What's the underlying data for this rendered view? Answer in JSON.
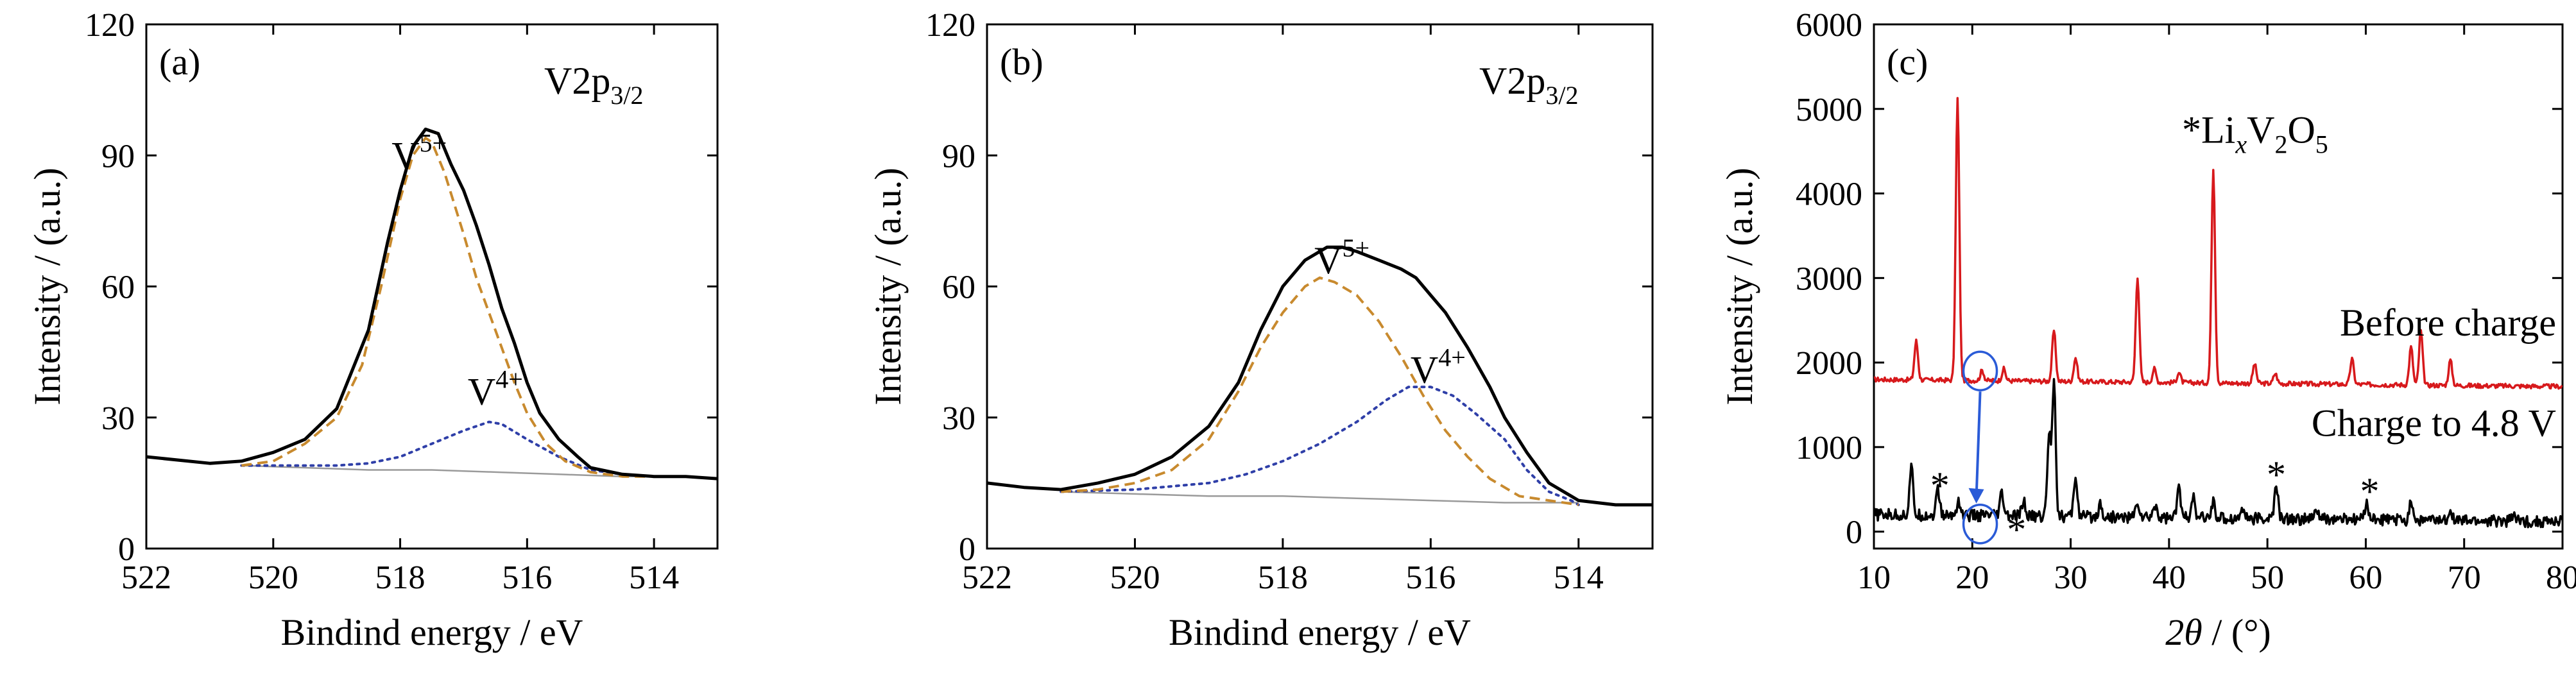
{
  "chart_data": [
    {
      "type": "line",
      "panel_label": "(a)",
      "annotation": {
        "main": "V2p",
        "sub": "3/2"
      },
      "xlabel": "Bindind energy / eV",
      "ylabel": "Intensity / (a.u.)",
      "xlim": [
        522,
        513
      ],
      "ylim": [
        0,
        120
      ],
      "x_ticks": [
        522,
        520,
        518,
        516,
        514
      ],
      "y_ticks": [
        0,
        30,
        60,
        90,
        120
      ],
      "peak_labels": [
        {
          "base": "V",
          "sup": "5+",
          "x": 517.7,
          "y": 87
        },
        {
          "base": "V",
          "sup": "4+",
          "x": 516.5,
          "y": 33
        }
      ],
      "series": [
        {
          "style": "solid",
          "color": "#000000",
          "points": [
            [
              522,
              21
            ],
            [
              521,
              19.5
            ],
            [
              520.5,
              20
            ],
            [
              520,
              22
            ],
            [
              519.5,
              25
            ],
            [
              519,
              32
            ],
            [
              518.5,
              50
            ],
            [
              518.2,
              70
            ],
            [
              518,
              82
            ],
            [
              517.8,
              92
            ],
            [
              517.6,
              96
            ],
            [
              517.4,
              95
            ],
            [
              517.2,
              88
            ],
            [
              517,
              82
            ],
            [
              516.8,
              74
            ],
            [
              516.6,
              65
            ],
            [
              516.4,
              55
            ],
            [
              516.2,
              47
            ],
            [
              516,
              38
            ],
            [
              515.8,
              31
            ],
            [
              515.5,
              25
            ],
            [
              515.2,
              21
            ],
            [
              515,
              18.5
            ],
            [
              514.5,
              17
            ],
            [
              514,
              16.5
            ],
            [
              513.5,
              16.5
            ],
            [
              513,
              16
            ]
          ]
        },
        {
          "style": "dashed",
          "color": "#c88a2e",
          "points": [
            [
              520.5,
              19
            ],
            [
              520,
              20
            ],
            [
              519.5,
              24
            ],
            [
              519,
              30
            ],
            [
              518.6,
              42
            ],
            [
              518.3,
              60
            ],
            [
              518,
              80
            ],
            [
              517.8,
              90
            ],
            [
              517.6,
              94
            ],
            [
              517.5,
              93
            ],
            [
              517.3,
              86
            ],
            [
              517,
              72
            ],
            [
              516.8,
              62
            ],
            [
              516.5,
              50
            ],
            [
              516.2,
              38
            ],
            [
              516,
              31
            ],
            [
              515.7,
              24
            ],
            [
              515.4,
              20
            ],
            [
              515,
              17.5
            ],
            [
              514.5,
              16.5
            ],
            [
              514,
              16.5
            ]
          ]
        },
        {
          "style": "dotted",
          "color": "#2f3fa8",
          "points": [
            [
              520.5,
              19
            ],
            [
              520,
              19
            ],
            [
              519,
              19
            ],
            [
              518.5,
              19.5
            ],
            [
              518,
              21
            ],
            [
              517.5,
              24
            ],
            [
              517,
              27
            ],
            [
              516.6,
              29
            ],
            [
              516.4,
              28.5
            ],
            [
              516,
              25
            ],
            [
              515.5,
              21
            ],
            [
              515,
              18
            ],
            [
              514.5,
              17
            ]
          ]
        },
        {
          "style": "thin",
          "color": "#9a9a9a",
          "points": [
            [
              520.5,
              19
            ],
            [
              519.5,
              18.5
            ],
            [
              518.5,
              18
            ],
            [
              517.5,
              18
            ],
            [
              516.5,
              17.5
            ],
            [
              515.5,
              17
            ],
            [
              514.5,
              16.5
            ],
            [
              514,
              16.5
            ]
          ]
        }
      ]
    },
    {
      "type": "line",
      "panel_label": "(b)",
      "annotation": {
        "main": "V2p",
        "sub": "3/2"
      },
      "xlabel": "Bindind energy / eV",
      "ylabel": "Intensity / (a.u.)",
      "xlim": [
        522,
        513
      ],
      "ylim": [
        0,
        120
      ],
      "x_ticks": [
        522,
        520,
        518,
        516,
        514
      ],
      "y_ticks": [
        0,
        30,
        60,
        90,
        120
      ],
      "peak_labels": [
        {
          "base": "V",
          "sup": "5+",
          "x": 517.2,
          "y": 63
        },
        {
          "base": "V",
          "sup": "4+",
          "x": 515.9,
          "y": 38
        }
      ],
      "series": [
        {
          "style": "solid",
          "color": "#000000",
          "points": [
            [
              522,
              15
            ],
            [
              521.5,
              14
            ],
            [
              521,
              13.5
            ],
            [
              520.5,
              15
            ],
            [
              520,
              17
            ],
            [
              519.5,
              21
            ],
            [
              519,
              28
            ],
            [
              518.6,
              38
            ],
            [
              518.3,
              50
            ],
            [
              518,
              60
            ],
            [
              517.7,
              66
            ],
            [
              517.4,
              69
            ],
            [
              517.2,
              69
            ],
            [
              517,
              68
            ],
            [
              516.7,
              66
            ],
            [
              516.4,
              64
            ],
            [
              516.2,
              62
            ],
            [
              516,
              58
            ],
            [
              515.8,
              54
            ],
            [
              515.5,
              46
            ],
            [
              515.2,
              37
            ],
            [
              515,
              30
            ],
            [
              514.7,
              22
            ],
            [
              514.4,
              15
            ],
            [
              514.1,
              12
            ],
            [
              514,
              11
            ],
            [
              513.5,
              10
            ],
            [
              513,
              10
            ]
          ]
        },
        {
          "style": "dashed",
          "color": "#c88a2e",
          "points": [
            [
              521,
              13
            ],
            [
              520.5,
              13.5
            ],
            [
              520,
              15
            ],
            [
              519.5,
              18
            ],
            [
              519,
              25
            ],
            [
              518.6,
              36
            ],
            [
              518.3,
              46
            ],
            [
              518,
              54
            ],
            [
              517.7,
              60
            ],
            [
              517.5,
              62
            ],
            [
              517.3,
              61
            ],
            [
              517,
              58
            ],
            [
              516.7,
              52
            ],
            [
              516.4,
              44
            ],
            [
              516.1,
              35
            ],
            [
              515.8,
              27
            ],
            [
              515.5,
              21
            ],
            [
              515.2,
              16
            ],
            [
              514.8,
              12
            ],
            [
              514.4,
              11
            ],
            [
              514,
              10
            ]
          ]
        },
        {
          "style": "dotted",
          "color": "#2f3fa8",
          "points": [
            [
              521,
              13
            ],
            [
              520,
              13.5
            ],
            [
              519,
              15
            ],
            [
              518.5,
              17
            ],
            [
              518,
              20
            ],
            [
              517.5,
              24
            ],
            [
              517,
              29
            ],
            [
              516.6,
              34
            ],
            [
              516.3,
              37
            ],
            [
              516,
              37
            ],
            [
              515.7,
              35
            ],
            [
              515.4,
              31
            ],
            [
              515,
              25
            ],
            [
              514.7,
              18
            ],
            [
              514.4,
              13
            ],
            [
              514.1,
              11
            ],
            [
              514,
              10
            ]
          ]
        },
        {
          "style": "thin",
          "color": "#9a9a9a",
          "points": [
            [
              521,
              13
            ],
            [
              520,
              12.5
            ],
            [
              519,
              12
            ],
            [
              518,
              12
            ],
            [
              517,
              11.5
            ],
            [
              516,
              11
            ],
            [
              515,
              10.5
            ],
            [
              514,
              10.5
            ]
          ]
        }
      ]
    },
    {
      "type": "line",
      "panel_label": "(c)",
      "annotation": {
        "star": "*",
        "li": "Li",
        "x_italic": "x",
        "v": "V",
        "sub2": "2",
        "o": "O",
        "sub5": "5"
      },
      "xlabel_parts": {
        "theta": "2θ",
        "unit": " / (°)"
      },
      "ylabel": "Intensity / (a.u.)",
      "xlim": [
        10,
        80
      ],
      "ylim": [
        -200,
        6000
      ],
      "x_ticks": [
        10,
        20,
        30,
        40,
        50,
        60,
        70,
        80
      ],
      "y_ticks": [
        0,
        1000,
        2000,
        3000,
        4000,
        5000,
        6000
      ],
      "series": [
        {
          "name": "Before charge",
          "color": "#d7191c",
          "baseline": 1800,
          "peaks": [
            [
              14.3,
              460
            ],
            [
              18.5,
              3330
            ],
            [
              21,
              120
            ],
            [
              23.2,
              140
            ],
            [
              28.3,
              600
            ],
            [
              30.5,
              280
            ],
            [
              36.8,
              1250
            ],
            [
              38.5,
              160
            ],
            [
              41,
              120
            ],
            [
              44.5,
              2530
            ],
            [
              48.7,
              230
            ],
            [
              50.8,
              120
            ],
            [
              58.6,
              300
            ],
            [
              64.6,
              450
            ],
            [
              65.6,
              640
            ],
            [
              68.6,
              300
            ]
          ]
        },
        {
          "name": "Charge to 4.8 V",
          "color": "#000000",
          "baseline": 200,
          "peaks": [
            [
              13.8,
              560
            ],
            [
              16.5,
              300
            ],
            [
              18.6,
              180
            ],
            [
              23,
              260
            ],
            [
              25.2,
              180
            ],
            [
              27.8,
              950
            ],
            [
              28.3,
              1600
            ],
            [
              30.5,
              480
            ],
            [
              33,
              160
            ],
            [
              36.8,
              180
            ],
            [
              38.6,
              160
            ],
            [
              41,
              360
            ],
            [
              42.4,
              260
            ],
            [
              44.5,
              200
            ],
            [
              47.5,
              140
            ],
            [
              50.9,
              400
            ],
            [
              55,
              120
            ],
            [
              60.1,
              220
            ],
            [
              64.6,
              240
            ],
            [
              68.6,
              160
            ],
            [
              75,
              100
            ]
          ]
        }
      ],
      "star_marks": [
        [
          16.7,
          620
        ],
        [
          24.5,
          100
        ],
        [
          50.9,
          750
        ],
        [
          60.4,
          550
        ]
      ],
      "circles": [
        [
          20.8,
          1900
        ],
        [
          20.8,
          90
        ]
      ]
    }
  ]
}
